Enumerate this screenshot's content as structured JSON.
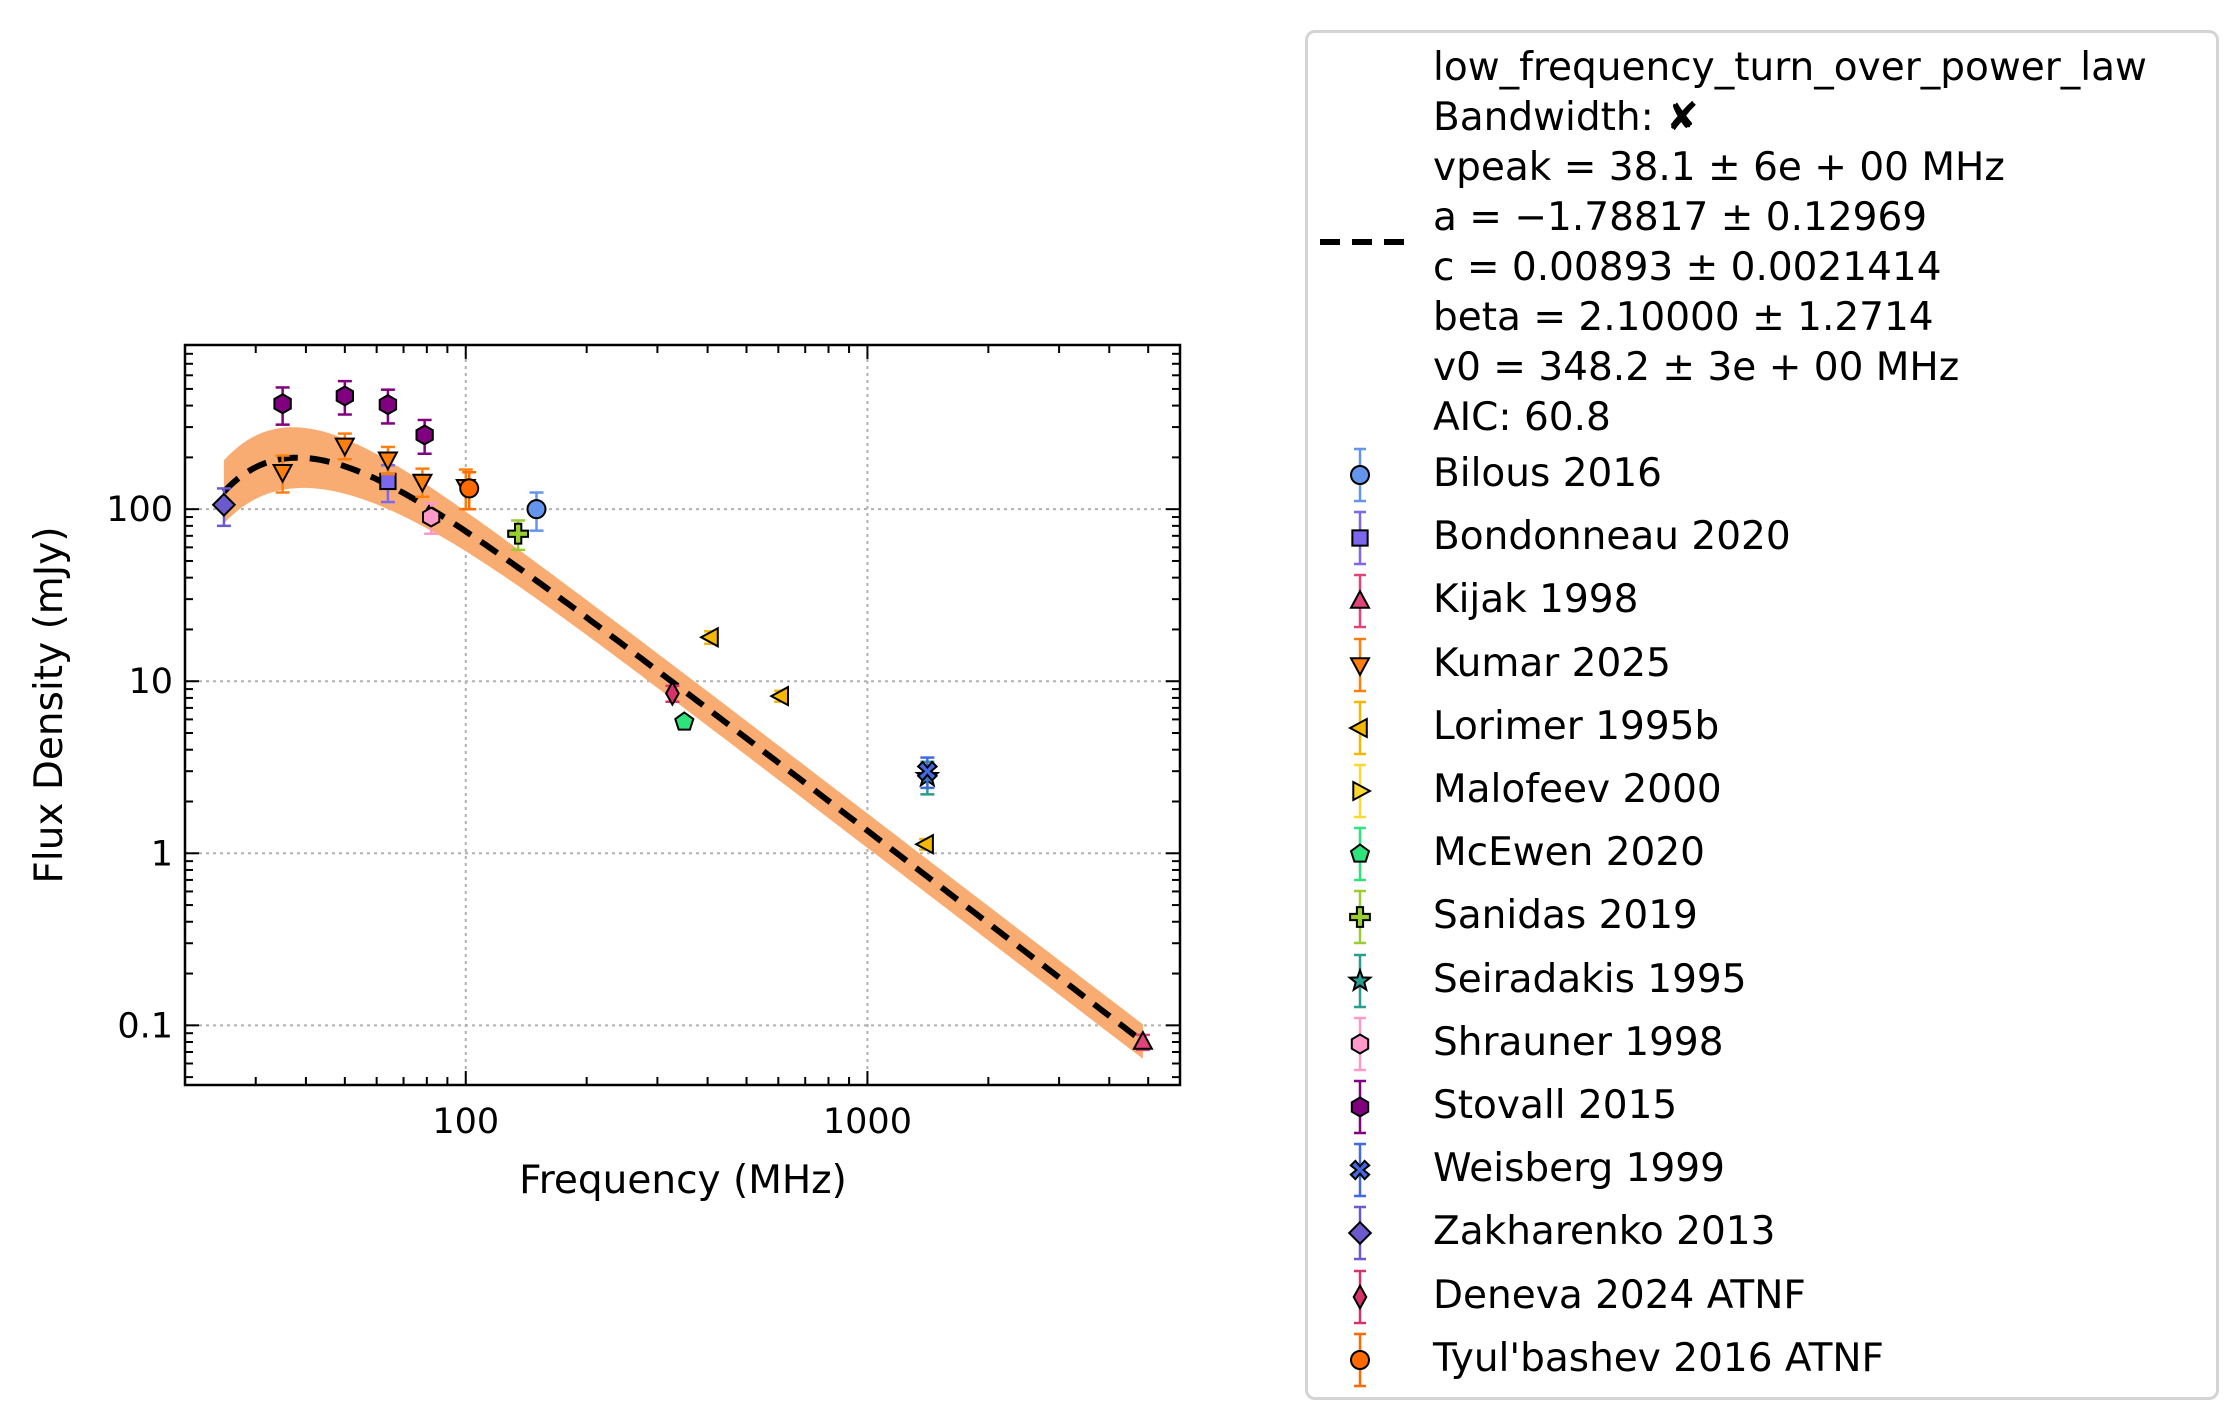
{
  "chart_data": {
    "type": "scatter",
    "xlabel": "Frequency (MHz)",
    "ylabel": "Flux Density (mJy)",
    "xscale": "log",
    "yscale": "log",
    "xlim": [
      20,
      6000
    ],
    "ylim": [
      0.045,
      900
    ],
    "xticks": [
      {
        "value": 100,
        "label": "100"
      },
      {
        "value": 1000,
        "label": "1000"
      }
    ],
    "yticks": [
      {
        "value": 0.1,
        "label": "0.1"
      },
      {
        "value": 1,
        "label": "1"
      },
      {
        "value": 10,
        "label": "10"
      },
      {
        "value": 100,
        "label": "100"
      }
    ],
    "grid": true,
    "legend_position": "outside-right",
    "fit": {
      "model": "low_frequency_turn_over_power_law",
      "vpeak": 38.1,
      "a": -1.78817,
      "c": 0.00893,
      "beta": 2.1,
      "v0": 348.2,
      "x_range": [
        25,
        4850
      ],
      "band_color": "#f9ac72",
      "line_color": "#000000",
      "legend_lines": [
        "low_frequency_turn_over_power_law",
        "Bandwidth: ✘",
        "vpeak = 38.1 ± 6e + 00 MHz",
        "a = −1.78817 ± 0.12969",
        "c = 0.00893 ± 0.0021414",
        "beta = 2.10000 ± 1.2714",
        "v0 = 348.2 ± 3e + 00 MHz",
        "AIC: 60.8"
      ]
    },
    "series": [
      {
        "name": "Bilous 2016",
        "marker": "circle",
        "color": "#6495ed",
        "points": [
          {
            "x": 150,
            "y": 100,
            "lo": 75,
            "hi": 125
          }
        ]
      },
      {
        "name": "Bondonneau 2020",
        "marker": "square",
        "color": "#7b68ee",
        "points": [
          {
            "x": 64,
            "y": 145,
            "lo": 110,
            "hi": 180
          }
        ]
      },
      {
        "name": "Kijak 1998",
        "marker": "triangle-up",
        "color": "#e0447a",
        "points": [
          {
            "x": 4850,
            "y": 0.08,
            "lo": 0.072,
            "hi": 0.088
          }
        ]
      },
      {
        "name": "Kumar 2025",
        "marker": "triangle-down",
        "color": "#ff7f0e",
        "points": [
          {
            "x": 35,
            "y": 165,
            "lo": 125,
            "hi": 205
          },
          {
            "x": 50,
            "y": 235,
            "lo": 195,
            "hi": 275
          },
          {
            "x": 64,
            "y": 195,
            "lo": 160,
            "hi": 230
          },
          {
            "x": 78,
            "y": 145,
            "lo": 118,
            "hi": 172
          },
          {
            "x": 100,
            "y": 135,
            "lo": 100,
            "hi": 170
          }
        ]
      },
      {
        "name": "Lorimer 1995b",
        "marker": "triangle-left",
        "color": "#f5b700",
        "points": [
          {
            "x": 408,
            "y": 18,
            "lo": 16.5,
            "hi": 19.5
          },
          {
            "x": 610,
            "y": 8.2,
            "lo": 7.6,
            "hi": 8.8
          },
          {
            "x": 1400,
            "y": 1.13,
            "lo": 1.05,
            "hi": 1.21
          }
        ]
      },
      {
        "name": "Malofeev 2000",
        "marker": "triangle-right",
        "color": "#ffd92f",
        "points": []
      },
      {
        "name": "McEwen 2020",
        "marker": "pentagon",
        "color": "#2ee37a",
        "points": [
          {
            "x": 350,
            "y": 5.8,
            "lo": 5.4,
            "hi": 6.2
          }
        ]
      },
      {
        "name": "Sanidas 2019",
        "marker": "plus",
        "color": "#9acd32",
        "points": [
          {
            "x": 135,
            "y": 72,
            "lo": 58,
            "hi": 86
          }
        ]
      },
      {
        "name": "Seiradakis 1995",
        "marker": "star",
        "color": "#2a9d8f",
        "points": [
          {
            "x": 1410,
            "y": 2.8,
            "lo": 2.2,
            "hi": 3.4
          }
        ]
      },
      {
        "name": "Shrauner 1998",
        "marker": "hexagon",
        "color": "#ff99c8",
        "points": [
          {
            "x": 82,
            "y": 90,
            "lo": 72,
            "hi": 108
          }
        ]
      },
      {
        "name": "Stovall 2015",
        "marker": "hexagon",
        "color": "#800080",
        "points": [
          {
            "x": 35,
            "y": 410,
            "lo": 310,
            "hi": 510
          },
          {
            "x": 50,
            "y": 455,
            "lo": 355,
            "hi": 555
          },
          {
            "x": 64,
            "y": 405,
            "lo": 315,
            "hi": 495
          },
          {
            "x": 79,
            "y": 270,
            "lo": 210,
            "hi": 330
          }
        ]
      },
      {
        "name": "Weisberg 1999",
        "marker": "x",
        "color": "#4169e1",
        "points": [
          {
            "x": 1410,
            "y": 3.0,
            "lo": 2.4,
            "hi": 3.6
          }
        ]
      },
      {
        "name": "Zakharenko 2013",
        "marker": "diamond",
        "color": "#6a5acd",
        "points": [
          {
            "x": 25,
            "y": 106,
            "lo": 80,
            "hi": 132
          }
        ]
      },
      {
        "name": "Deneva 2024 ATNF",
        "marker": "thin-diamond",
        "color": "#d6336c",
        "points": [
          {
            "x": 327,
            "y": 8.5,
            "lo": 7.6,
            "hi": 9.4
          }
        ]
      },
      {
        "name": "Tyul'bashev 2016 ATNF",
        "marker": "circle",
        "color": "#ff6a00",
        "points": [
          {
            "x": 102,
            "y": 132,
            "lo": 100,
            "hi": 164
          }
        ]
      }
    ]
  }
}
